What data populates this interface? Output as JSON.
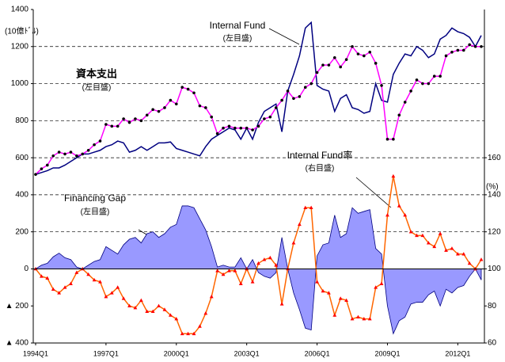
{
  "chart_data": {
    "type": "line",
    "unit_label": "(10億ﾄﾞﾙ)",
    "y2_unit_label": "(%)",
    "annotations": [
      "(左目盛)",
      "(左目盛)",
      "(左目盛)",
      "(右目盛)"
    ],
    "categories": [
      "1994Q1",
      null,
      null,
      null,
      null,
      null,
      null,
      null,
      null,
      null,
      null,
      null,
      "1997Q1",
      null,
      null,
      null,
      null,
      null,
      null,
      null,
      null,
      null,
      null,
      null,
      "2000Q1",
      null,
      null,
      null,
      null,
      null,
      null,
      null,
      null,
      null,
      null,
      null,
      "2003Q1",
      null,
      null,
      null,
      null,
      null,
      null,
      null,
      null,
      null,
      null,
      null,
      "2006Q1",
      null,
      null,
      null,
      null,
      null,
      null,
      null,
      null,
      null,
      null,
      null,
      "2009Q1",
      null,
      null,
      null,
      null,
      null,
      null,
      null,
      null,
      null,
      null,
      null,
      "2012Q1",
      null,
      null,
      null,
      null
    ],
    "ylim": [
      -400,
      1400
    ],
    "yticks": [
      {
        "value": -400,
        "label": "▲ 400"
      },
      {
        "value": -200,
        "label": "▲ 200"
      },
      0,
      200,
      400,
      600,
      800,
      1000,
      1200,
      1400
    ],
    "y2lim": [
      60,
      240
    ],
    "y2ticks": [
      60,
      80,
      100,
      120,
      140,
      160
    ],
    "grid": true,
    "series": [
      {
        "name": "Internal Fund",
        "kind": "line",
        "color": "#000080",
        "values": [
          510,
          520,
          530,
          545,
          545,
          560,
          580,
          600,
          620,
          620,
          630,
          640,
          660,
          670,
          690,
          680,
          630,
          640,
          660,
          640,
          660,
          680,
          680,
          685,
          650,
          640,
          630,
          620,
          610,
          660,
          700,
          720,
          740,
          760,
          750,
          700,
          760,
          700,
          790,
          850,
          870,
          890,
          740,
          960,
          1050,
          1150,
          1300,
          1330,
          990,
          970,
          960,
          850,
          920,
          940,
          870,
          860,
          840,
          850,
          1000,
          910,
          900,
          1050,
          1110,
          1160,
          1150,
          1200,
          1180,
          1140,
          1160,
          1240,
          1260,
          1300,
          1280,
          1270,
          1250,
          1200,
          1260
        ]
      },
      {
        "name": "資本支出",
        "kind": "line",
        "marker": "circle",
        "color": "#ff00ff",
        "marker_color": "#000000",
        "values": [
          510,
          540,
          560,
          610,
          630,
          620,
          630,
          610,
          620,
          640,
          670,
          690,
          780,
          770,
          770,
          810,
          790,
          810,
          800,
          830,
          860,
          850,
          870,
          910,
          890,
          980,
          970,
          950,
          880,
          870,
          820,
          730,
          760,
          770,
          760,
          760,
          760,
          750,
          770,
          810,
          820,
          870,
          910,
          960,
          920,
          930,
          980,
          1000,
          1060,
          1100,
          1100,
          1140,
          1090,
          1130,
          1200,
          1160,
          1150,
          1170,
          1110,
          990,
          700,
          700,
          830,
          900,
          960,
          1020,
          1000,
          1000,
          1040,
          1040,
          1150,
          1170,
          1180,
          1180,
          1210,
          1200,
          1200
        ]
      },
      {
        "name": "Financing Gap",
        "kind": "area",
        "color": "#9999ff",
        "edge_color": "#000080",
        "values": [
          0,
          20,
          30,
          65,
          85,
          60,
          50,
          10,
          0,
          20,
          40,
          50,
          120,
          100,
          80,
          130,
          160,
          170,
          140,
          190,
          200,
          170,
          190,
          225,
          240,
          340,
          340,
          330,
          270,
          210,
          120,
          10,
          20,
          10,
          10,
          60,
          0,
          50,
          -20,
          -40,
          -50,
          -20,
          170,
          0,
          -130,
          -220,
          -320,
          -330,
          70,
          130,
          140,
          290,
          170,
          190,
          330,
          300,
          310,
          320,
          110,
          80,
          -200,
          -350,
          -280,
          -260,
          -190,
          -180,
          -180,
          -140,
          -120,
          -200,
          -110,
          -130,
          -100,
          -90,
          -40,
          0,
          -60
        ]
      },
      {
        "name": "Internal Fund率",
        "kind": "line",
        "marker": "triangle",
        "axis": "y2",
        "color": "#ff6600",
        "marker_color": "#ff0000",
        "values": [
          100,
          96,
          95,
          89,
          87,
          90,
          92,
          98,
          100,
          97,
          94,
          93,
          85,
          87,
          90,
          84,
          80,
          79,
          83,
          77,
          77,
          80,
          78,
          75,
          73,
          65,
          65,
          65,
          69,
          76,
          85,
          99,
          97,
          99,
          99,
          92,
          100,
          93,
          103,
          105,
          106,
          102,
          81,
          100,
          114,
          124,
          133,
          133,
          93,
          88,
          87,
          75,
          84,
          83,
          73,
          74,
          73,
          73,
          90,
          92,
          129,
          150,
          134,
          129,
          120,
          118,
          118,
          114,
          112,
          119,
          110,
          111,
          108,
          108,
          103,
          100,
          105
        ]
      }
    ]
  }
}
